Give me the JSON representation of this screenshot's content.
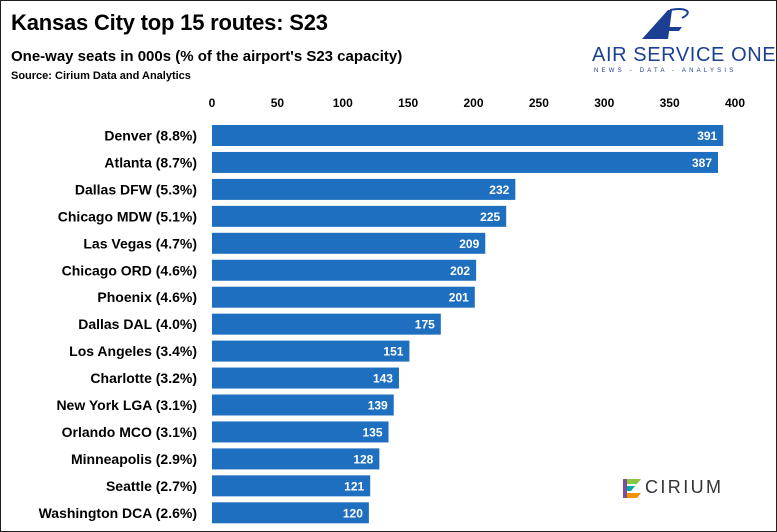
{
  "title": "Kansas City top 15 routes: S23",
  "subtitle": "One-way seats in 000s (% of the airport's S23 capacity)",
  "source": "Source: Cirium Data and Analytics",
  "logos": {
    "air_service_one": "AIR SERVICE ONE",
    "air_service_one_tagline": "NEWS - DATA - ANALYSIS",
    "cirium": "CIRIUM"
  },
  "colors": {
    "bar": "#1f6fc1",
    "brand_blue": "#1c3f94",
    "cirium_green": "#8cc63f",
    "cirium_teal": "#00a99d",
    "cirium_orange": "#f39200",
    "cirium_purple": "#7b4ea0"
  },
  "chart_data": {
    "type": "bar",
    "orientation": "horizontal",
    "categories": [
      "Denver (8.8%)",
      "Atlanta (8.7%)",
      "Dallas DFW (5.3%)",
      "Chicago MDW (5.1%)",
      "Las Vegas (4.7%)",
      "Chicago ORD (4.6%)",
      "Phoenix (4.6%)",
      "Dallas DAL (4.0%)",
      "Los Angeles (3.4%)",
      "Charlotte (3.2%)",
      "New York LGA (3.1%)",
      "Orlando MCO (3.1%)",
      "Minneapolis (2.9%)",
      "Seattle (2.7%)",
      "Washington DCA (2.6%)"
    ],
    "values": [
      391,
      387,
      232,
      225,
      209,
      202,
      201,
      175,
      151,
      143,
      139,
      135,
      128,
      121,
      120
    ],
    "xlim": [
      0,
      400
    ],
    "x_ticks": [
      0,
      50,
      100,
      150,
      200,
      250,
      300,
      350,
      400
    ],
    "axis_position": "top",
    "data_labels": true,
    "grid": false,
    "legend": "none"
  }
}
